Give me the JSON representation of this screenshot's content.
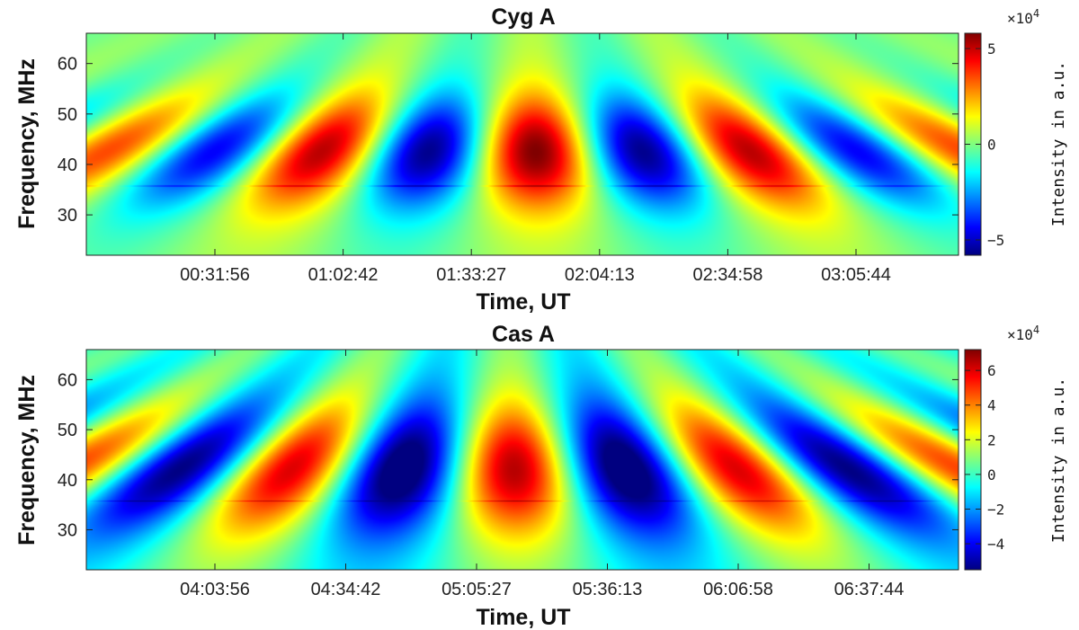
{
  "chart_data": [
    {
      "type": "heatmap",
      "title": "Cyg A",
      "xlabel": "Time, UT",
      "ylabel": "Frequency, MHz",
      "x_ticks": [
        "00:31:56",
        "01:02:42",
        "01:33:27",
        "02:04:13",
        "02:34:58",
        "03:05:44"
      ],
      "y_ticks": [
        30,
        40,
        50,
        60
      ],
      "ylim": [
        22,
        66
      ],
      "colorbar": {
        "label": "Intensity in a.u.",
        "multiplier_base": "×10",
        "multiplier_exp": "4",
        "ticks": [
          5,
          0,
          -5
        ],
        "tick_labels": [
          "5",
          "0",
          "−5"
        ],
        "range": [
          -5.8,
          5.8
        ],
        "colormap": "jet"
      },
      "pattern": {
        "peak_time": "01:49:30",
        "peak_intensity": 5.8,
        "stripe_count": 9
      }
    },
    {
      "type": "heatmap",
      "title": "Cas A",
      "xlabel": "Time, UT",
      "ylabel": "Frequency, MHz",
      "x_ticks": [
        "04:03:56",
        "04:34:42",
        "05:05:27",
        "05:36:13",
        "06:06:58",
        "06:37:44"
      ],
      "y_ticks": [
        30,
        40,
        50,
        60
      ],
      "ylim": [
        22,
        66
      ],
      "colorbar": {
        "label": "Intensity in a.u.",
        "multiplier_base": "×10",
        "multiplier_exp": "4",
        "ticks": [
          6,
          4,
          2,
          0,
          -2,
          -4
        ],
        "tick_labels": [
          "6",
          "4",
          "2",
          "0",
          "−2",
          "−4"
        ],
        "range": [
          -5.5,
          7.2
        ],
        "colormap": "jet"
      },
      "pattern": {
        "peak_time": "05:14:00",
        "peak_intensity": 6.5,
        "stripe_count": 9
      }
    }
  ]
}
